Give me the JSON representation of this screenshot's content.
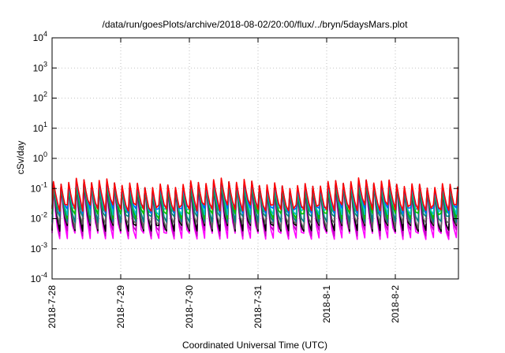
{
  "chart_data": {
    "type": "line",
    "title": "/data/run/goesPlots/archive/2018-08-02/20:00/flux/../bryn/5daysMars.plot",
    "xlabel": "Coordinated Universal Time (UTC)",
    "ylabel": "cSv/day",
    "yscale": "log",
    "ylim": [
      0.0001,
      10000
    ],
    "xlim": [
      "2018-07-28",
      "2018-08-02 22:00"
    ],
    "x_tick_labels": [
      "2018-7-28",
      "2018-7-29",
      "2018-7-30",
      "2018-7-31",
      "2018-8-1",
      "2018-8-2"
    ],
    "y_ticks": [
      {
        "base": "10",
        "exp": "-4"
      },
      {
        "base": "10",
        "exp": "-3"
      },
      {
        "base": "10",
        "exp": "-2"
      },
      {
        "base": "10",
        "exp": "-1"
      },
      {
        "base": "10",
        "exp": "0"
      },
      {
        "base": "10",
        "exp": "1"
      },
      {
        "base": "10",
        "exp": "2"
      },
      {
        "base": "10",
        "exp": "3"
      },
      {
        "base": "10",
        "exp": "4"
      }
    ],
    "grid": true,
    "spikes_per_day": 9,
    "series": [
      {
        "color": "#ff00ff",
        "peak": 0.095,
        "trough": 0.0025
      },
      {
        "color": "#c000c0",
        "peak": 0.1,
        "trough": 0.0035
      },
      {
        "color": "#000000",
        "peak": 0.11,
        "trough": 0.0045
      },
      {
        "color": "#606060",
        "peak": 0.11,
        "trough": 0.006
      },
      {
        "color": "#008080",
        "peak": 0.12,
        "trough": 0.009
      },
      {
        "color": "#00c000",
        "peak": 0.12,
        "trough": 0.013
      },
      {
        "color": "#00c0c0",
        "peak": 0.13,
        "trough": 0.016
      },
      {
        "color": "#0060ff",
        "peak": 0.14,
        "trough": 0.02
      },
      {
        "color": "#ff0000",
        "peak": 0.15,
        "trough": 0.022
      }
    ]
  }
}
